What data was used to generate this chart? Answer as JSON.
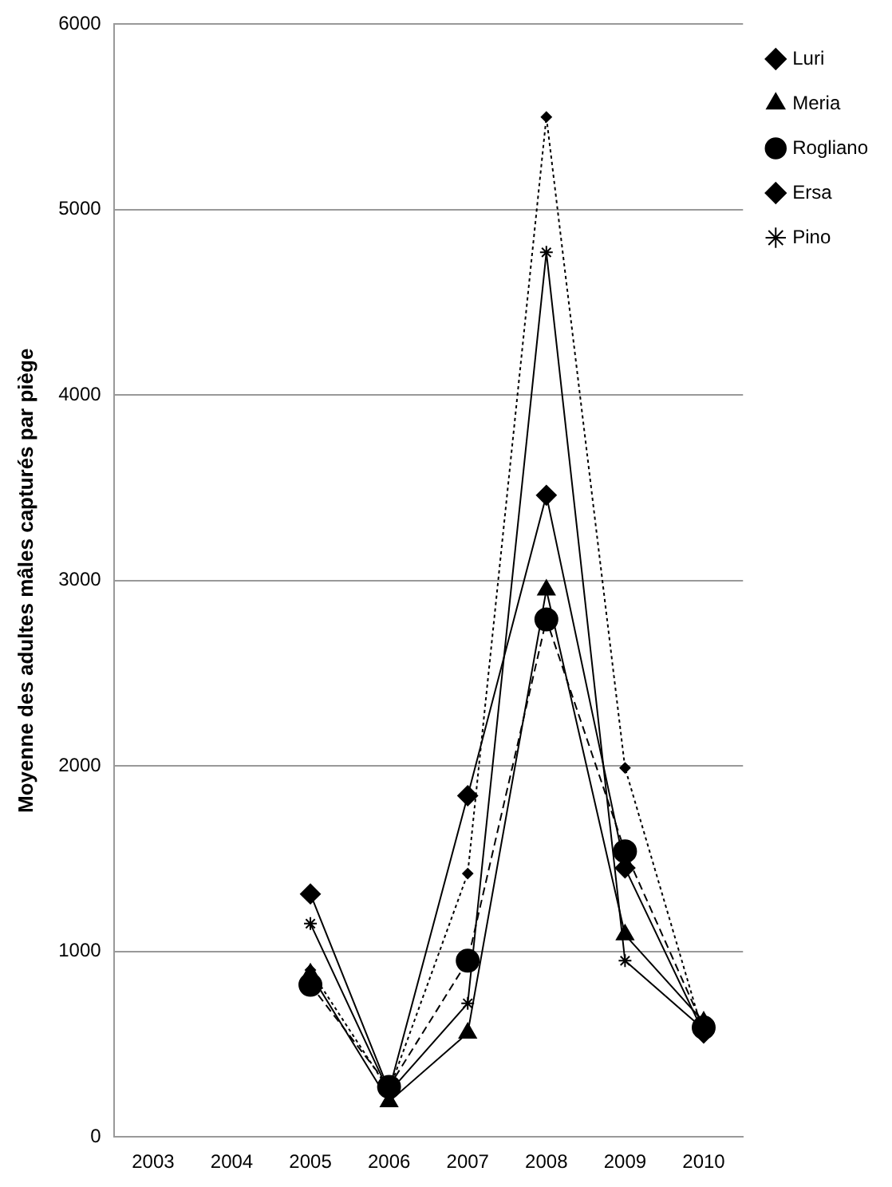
{
  "chart_data": {
    "type": "line",
    "ylabel": "Moyenne des adultes mâles capturés par piège",
    "categories": [
      "2003",
      "2004",
      "2005",
      "2006",
      "2007",
      "2008",
      "2009",
      "2010"
    ],
    "series": [
      {
        "name": "Luri",
        "color": "#000000",
        "marker": "diamond",
        "line_style": "dotted",
        "values": [
          null,
          null,
          900,
          250,
          1420,
          5500,
          1990,
          550
        ]
      },
      {
        "name": "Meria",
        "color": "#000000",
        "marker": "triangle",
        "line_style": "solid",
        "values": [
          null,
          null,
          880,
          190,
          560,
          2950,
          1090,
          620
        ]
      },
      {
        "name": "Rogliano",
        "color": "#000000",
        "marker": "circle",
        "line_style": "dashed",
        "values": [
          null,
          null,
          820,
          270,
          950,
          2790,
          1540,
          590
        ]
      },
      {
        "name": "Ersa",
        "color": "#000000",
        "marker": "diamond",
        "line_style": "solid",
        "values": [
          null,
          null,
          1310,
          250,
          1840,
          3460,
          1450,
          560
        ]
      },
      {
        "name": "Pino",
        "color": "#000000",
        "marker": "cross",
        "line_style": "solid",
        "values": [
          null,
          null,
          1150,
          240,
          720,
          4770,
          950,
          580
        ]
      }
    ],
    "ylim": [
      0,
      6000
    ],
    "yticks": [
      0,
      1000,
      2000,
      3000,
      4000,
      5000,
      6000
    ],
    "grid": "y",
    "legend": "top right"
  }
}
